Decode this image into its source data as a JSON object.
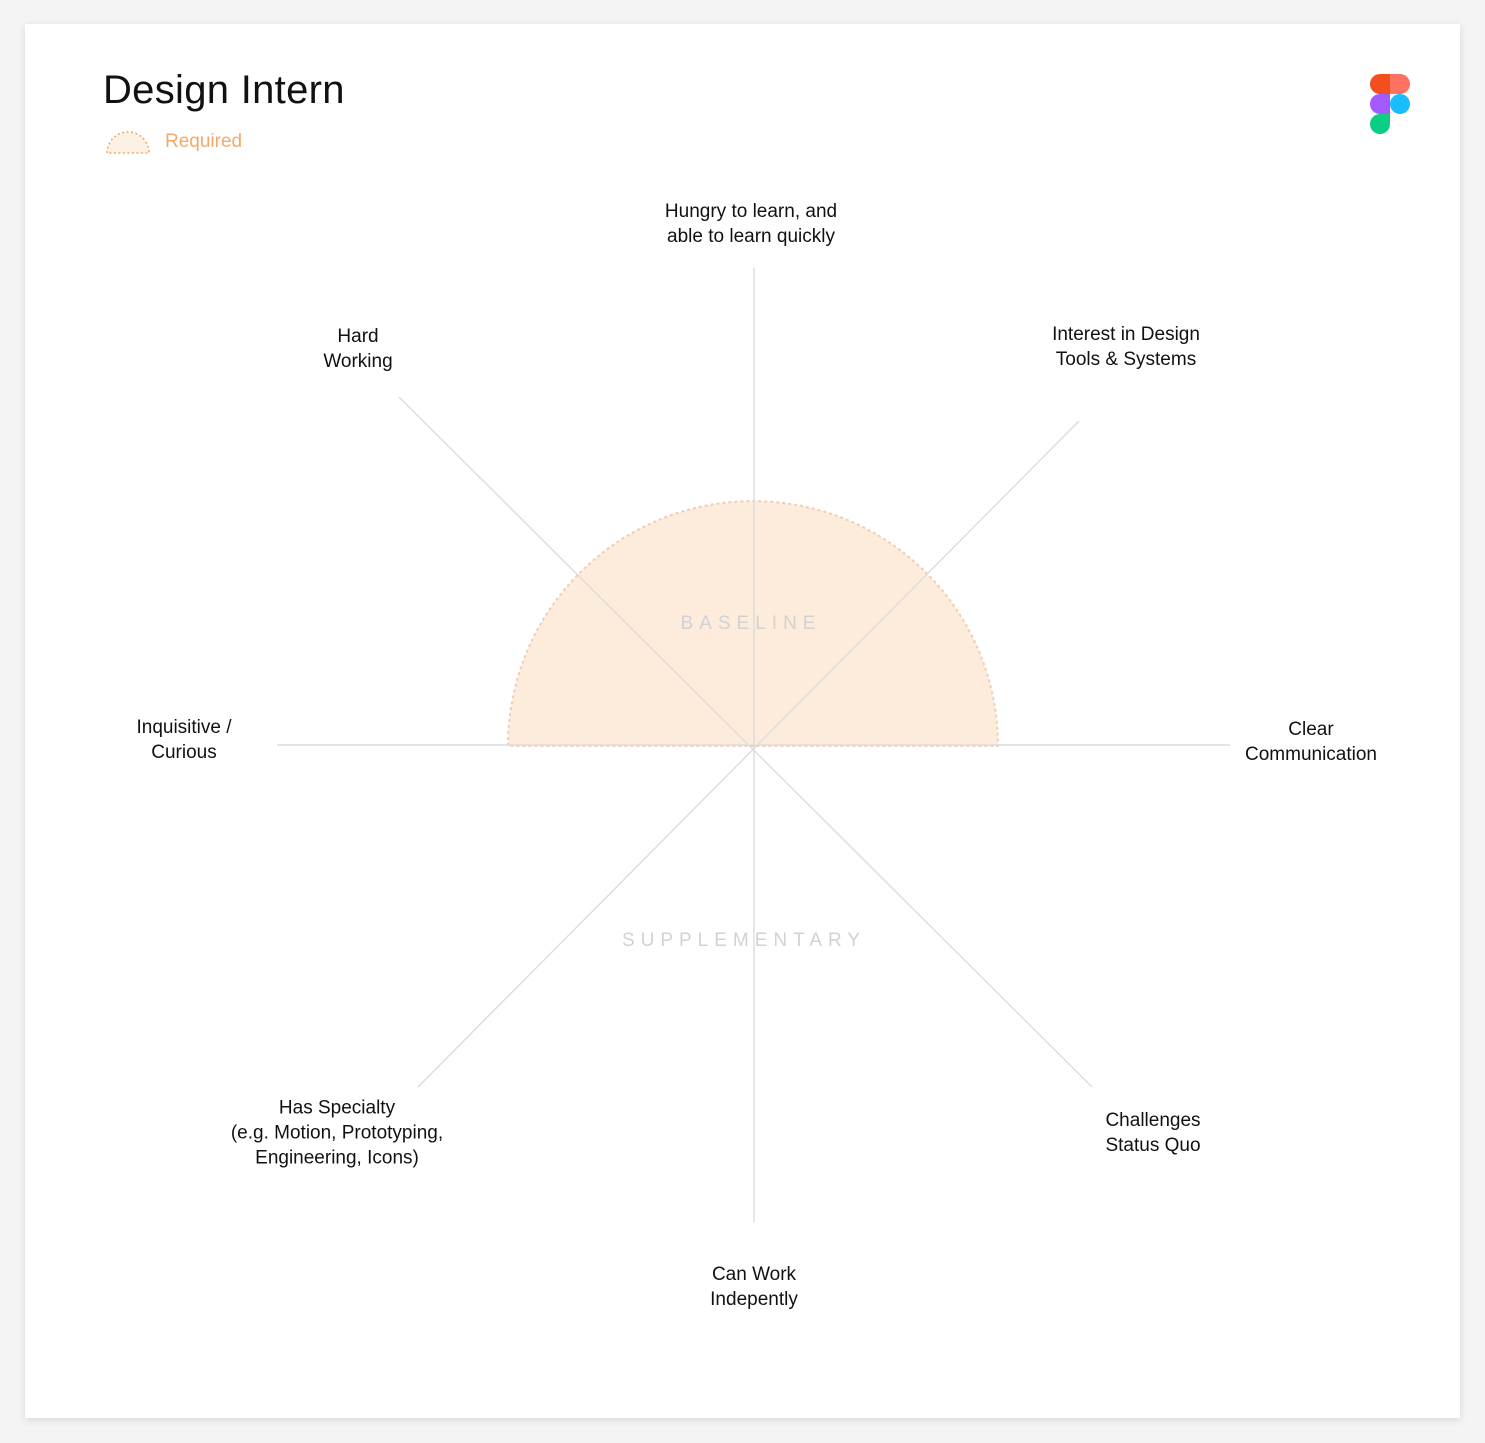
{
  "title": "Design Intern",
  "legend": {
    "required_label": "Required",
    "required_color": "#f2a96a",
    "fill_color": "#fdebdc"
  },
  "logo": {
    "icon": "figma-logo-icon",
    "colors": [
      "#f24e1e",
      "#ff7262",
      "#a259ff",
      "#1abcfe",
      "#0acf83"
    ]
  },
  "regions": {
    "baseline": "BASELINE",
    "supplementary": "SUPPLEMENTARY"
  },
  "axes": [
    {
      "id": "hungry",
      "lines": [
        "Hungry to learn, and",
        "able to learn quickly"
      ]
    },
    {
      "id": "design-tools",
      "lines": [
        "Interest in Design",
        "Tools & Systems"
      ]
    },
    {
      "id": "communication",
      "lines": [
        "Clear",
        "Communication"
      ]
    },
    {
      "id": "status-quo",
      "lines": [
        "Challenges",
        "Status Quo"
      ]
    },
    {
      "id": "independent",
      "lines": [
        "Can Work",
        "Indepently"
      ]
    },
    {
      "id": "specialty",
      "lines": [
        "Has Specialty",
        "(e.g. Motion, Prototyping,",
        "Engineering, Icons)"
      ]
    },
    {
      "id": "curious",
      "lines": [
        "Inquisitive /",
        "Curious"
      ]
    },
    {
      "id": "hard-working",
      "lines": [
        "Hard",
        "Working"
      ]
    }
  ]
}
